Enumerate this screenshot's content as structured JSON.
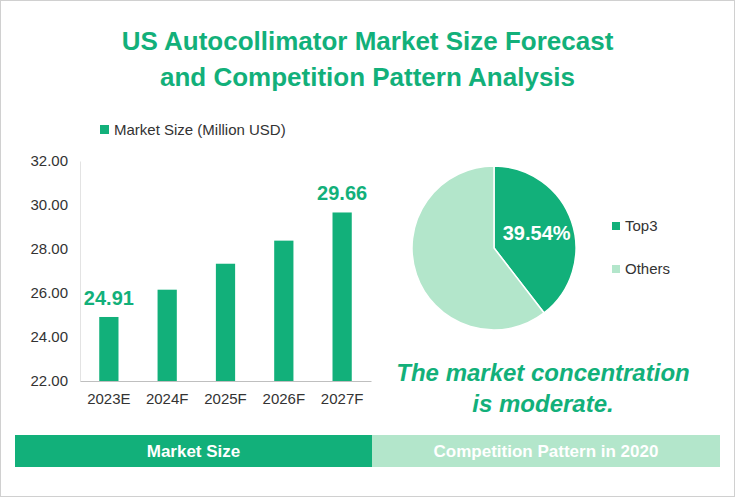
{
  "title": [
    "US Autocollimator Market Size Forecast",
    "and Competition Pattern Analysis"
  ],
  "annotation": [
    "The market concentration",
    "is moderate."
  ],
  "sections": [
    "Market Size",
    "Competition Pattern in 2020"
  ],
  "chart_data": [
    {
      "type": "bar",
      "categories": [
        "2023E",
        "2024F",
        "2025F",
        "2026F",
        "2027F"
      ],
      "series": [
        {
          "name": "Market Size (Million USD)",
          "color": "#12b07a",
          "values": [
            24.91,
            26.15,
            27.33,
            28.38,
            29.66
          ],
          "value_labels": [
            "24.91",
            null,
            null,
            null,
            "29.66"
          ]
        }
      ],
      "ylim": [
        22,
        32
      ],
      "yticks": [
        {
          "value": 22,
          "label": "22.00"
        },
        {
          "value": 24,
          "label": "24.00"
        },
        {
          "value": 26,
          "label": "26.00"
        },
        {
          "value": 28,
          "label": "28.00"
        },
        {
          "value": 30,
          "label": "30.00"
        },
        {
          "value": 32,
          "label": "32.00"
        }
      ],
      "grid": false,
      "legend": "top-left"
    },
    {
      "type": "pie",
      "categories": [
        "Top3",
        "Others"
      ],
      "values": [
        39.54,
        60.46
      ],
      "colors": [
        "#12b07a",
        "#b3e6cb"
      ],
      "value_labels": [
        "39.54%",
        null
      ],
      "legend": "right"
    }
  ]
}
